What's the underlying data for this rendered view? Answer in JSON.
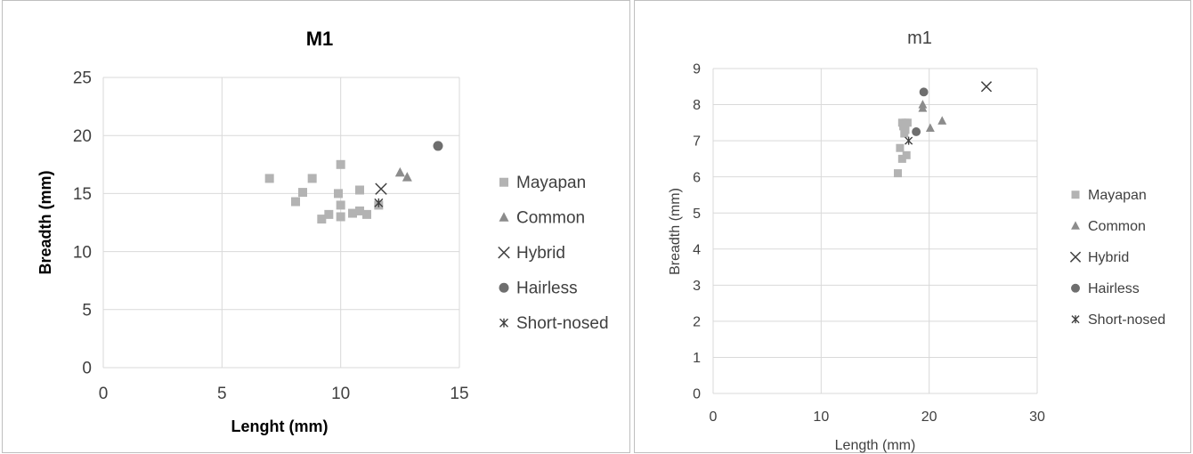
{
  "colors": {
    "mayapan": "#b3b3b3",
    "common": "#8c8c8c",
    "hybrid": "#404040",
    "hairless": "#6e6e6e",
    "short_nosed": "#404040",
    "grid": "#d9d9d9",
    "text": "#404040"
  },
  "chart_data": [
    {
      "type": "scatter",
      "title": "M1",
      "xlabel": "Lenght (mm)",
      "ylabel": "Breadth (mm)",
      "xlim": [
        0,
        15
      ],
      "ylim": [
        0,
        25
      ],
      "xticks": [
        "0",
        "5",
        "10",
        "15"
      ],
      "yticks": [
        "0",
        "5",
        "10",
        "15",
        "20",
        "25"
      ],
      "grid": true,
      "legend_position": "right",
      "series": [
        {
          "name": "Mayapan",
          "marker": "square",
          "color_key": "mayapan",
          "x": [
            7.0,
            8.1,
            8.4,
            8.8,
            9.2,
            9.5,
            9.9,
            10.0,
            10.0,
            10.0,
            10.5,
            10.8,
            10.8,
            11.1,
            11.6
          ],
          "y": [
            16.3,
            14.3,
            15.1,
            16.3,
            12.8,
            13.2,
            15.0,
            17.5,
            14.0,
            13.0,
            13.3,
            13.5,
            15.3,
            13.2,
            14.0
          ]
        },
        {
          "name": "Common",
          "marker": "triangle",
          "color_key": "common",
          "x": [
            12.5,
            12.8
          ],
          "y": [
            16.8,
            16.4
          ]
        },
        {
          "name": "Hybrid",
          "marker": "x",
          "color_key": "hybrid",
          "x": [
            11.7
          ],
          "y": [
            15.4
          ]
        },
        {
          "name": "Hairless",
          "marker": "circle",
          "color_key": "hairless",
          "x": [
            14.1
          ],
          "y": [
            19.1
          ]
        },
        {
          "name": "Short-nosed",
          "marker": "asterisk",
          "color_key": "short_nosed",
          "x": [
            11.6
          ],
          "y": [
            14.2
          ]
        }
      ]
    },
    {
      "type": "scatter",
      "title": "m1",
      "xlabel": "Length (mm)",
      "ylabel": "Breadth (mm)",
      "xlim": [
        0,
        30
      ],
      "ylim": [
        0,
        9
      ],
      "xticks": [
        "0",
        "10",
        "20",
        "30"
      ],
      "yticks": [
        "0",
        "1",
        "2",
        "3",
        "4",
        "5",
        "6",
        "7",
        "8",
        "9"
      ],
      "grid": true,
      "legend_position": "right",
      "series": [
        {
          "name": "Mayapan",
          "marker": "square",
          "color_key": "mayapan",
          "x": [
            17.1,
            17.3,
            17.5,
            17.6,
            17.7,
            17.8,
            17.8,
            17.9,
            18.0,
            17.5
          ],
          "y": [
            6.1,
            6.8,
            6.5,
            7.4,
            7.2,
            7.3,
            7.5,
            6.6,
            7.5,
            7.5
          ]
        },
        {
          "name": "Common",
          "marker": "triangle",
          "color_key": "common",
          "x": [
            19.4,
            19.4,
            20.1,
            21.2
          ],
          "y": [
            8.0,
            7.9,
            7.35,
            7.55
          ]
        },
        {
          "name": "Hybrid",
          "marker": "x",
          "color_key": "hybrid",
          "x": [
            25.3
          ],
          "y": [
            8.5
          ]
        },
        {
          "name": "Hairless",
          "marker": "circle",
          "color_key": "hairless",
          "x": [
            19.5,
            18.8
          ],
          "y": [
            8.35,
            7.25
          ]
        },
        {
          "name": "Short-nosed",
          "marker": "asterisk",
          "color_key": "short_nosed",
          "x": [
            18.1
          ],
          "y": [
            7.0
          ]
        }
      ]
    }
  ]
}
